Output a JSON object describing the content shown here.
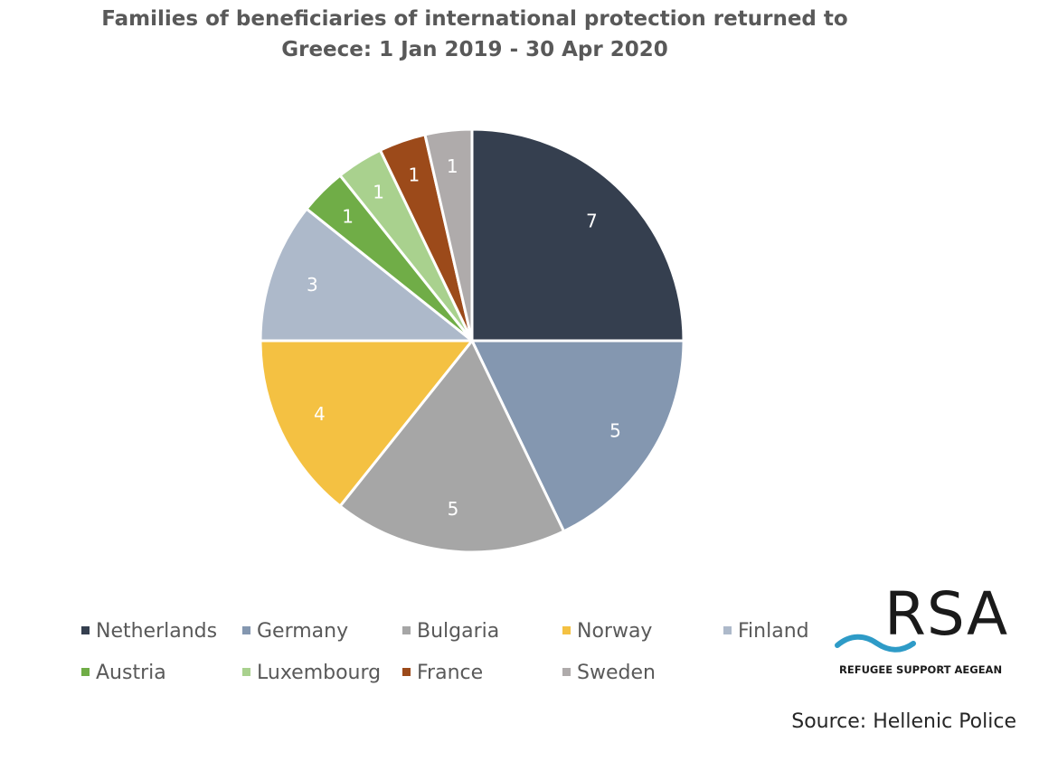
{
  "chart_data": {
    "type": "pie",
    "title_lines": [
      "Families of beneficiaries of international protection returned to",
      "Greece: 1 Jan 2019 - 30 Apr 2020"
    ],
    "slices": [
      {
        "label": "Netherlands",
        "value": 7,
        "color": "#353f4f"
      },
      {
        "label": "Germany",
        "value": 5,
        "color": "#8497b0"
      },
      {
        "label": "Bulgaria",
        "value": 5,
        "color": "#a6a6a6"
      },
      {
        "label": "Norway",
        "value": 4,
        "color": "#f4c142"
      },
      {
        "label": "Finland",
        "value": 3,
        "color": "#adb9ca"
      },
      {
        "label": "Austria",
        "value": 1,
        "color": "#70ad47"
      },
      {
        "label": "Luxembourg",
        "value": 1,
        "color": "#a9d18e"
      },
      {
        "label": "France",
        "value": 1,
        "color": "#9c4a1a"
      },
      {
        "label": "Sweden",
        "value": 1,
        "color": "#afabab"
      }
    ],
    "legend_placement": "bottom",
    "data_labels": true
  },
  "logo": {
    "text": "RSA",
    "subtitle": "REFUGEE SUPPORT AEGEAN"
  },
  "source": "Source: Hellenic Police"
}
